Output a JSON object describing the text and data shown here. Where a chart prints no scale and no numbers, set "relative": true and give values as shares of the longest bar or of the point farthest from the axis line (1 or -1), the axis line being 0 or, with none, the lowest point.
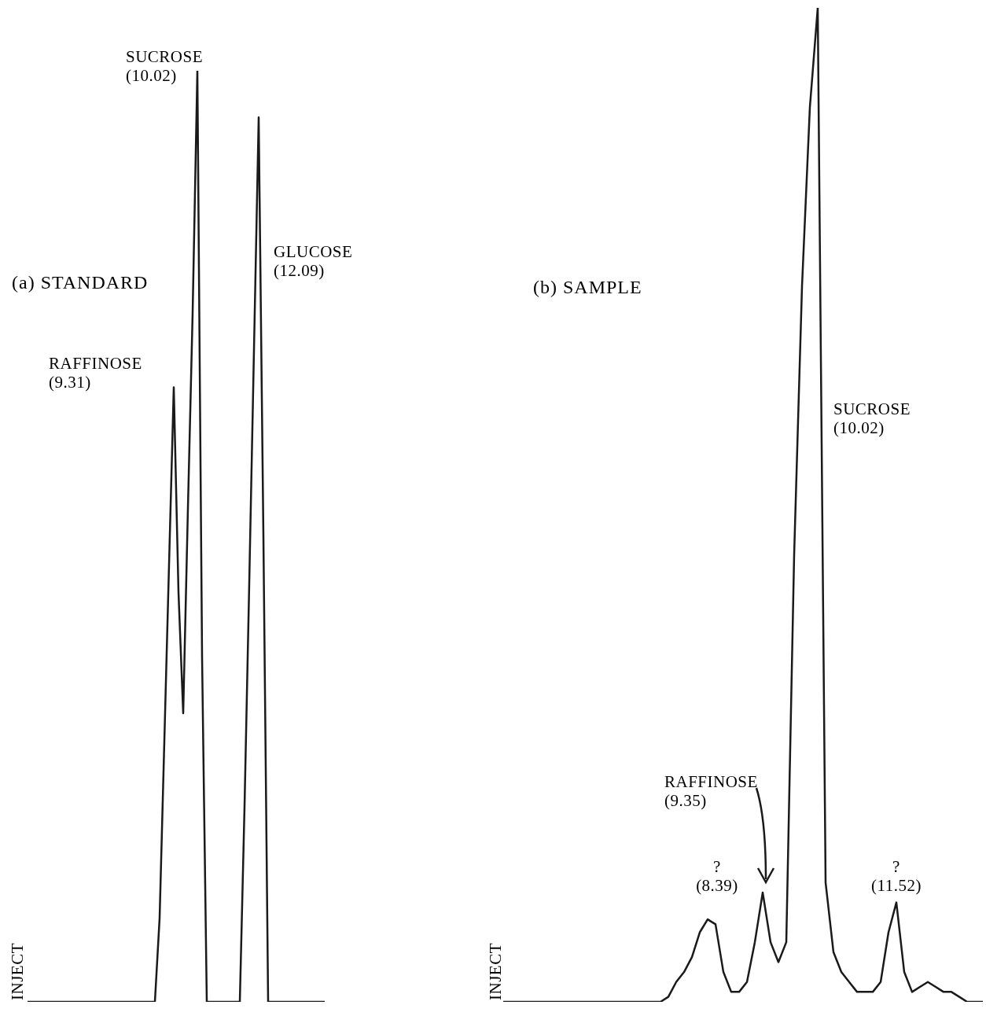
{
  "chart_data": [
    {
      "type": "line",
      "title": "(a) STANDARD",
      "relative": true,
      "color": "#1a1a1a",
      "categories": [
        null,
        null,
        null,
        null,
        null,
        null,
        null,
        null,
        null,
        null,
        null,
        null,
        null,
        null,
        null,
        null,
        null,
        null,
        null,
        null,
        null,
        null,
        null,
        null,
        null,
        null,
        null,
        null,
        null,
        null,
        null,
        null,
        null,
        null,
        null,
        null,
        null,
        null,
        null,
        null,
        null,
        null,
        null,
        null,
        null,
        null,
        null,
        null,
        null,
        null,
        null,
        null,
        null,
        null,
        null,
        null,
        null,
        null,
        null,
        null,
        null,
        null,
        null,
        null
      ],
      "values": [
        0,
        0,
        0,
        0,
        0,
        0,
        0,
        0,
        0,
        0,
        0,
        0,
        0,
        0,
        0,
        0,
        0,
        0,
        0,
        0,
        0,
        0,
        0,
        0,
        0,
        0,
        0,
        0,
        0.09,
        0.28,
        0.47,
        0.66,
        0.44,
        0.31,
        0.53,
        0.74,
        1,
        0.37,
        0,
        0,
        0,
        0,
        0,
        0,
        0,
        0,
        0.21,
        0.45,
        0.7,
        0.95,
        0.5,
        0,
        0,
        0,
        0,
        0,
        0,
        0,
        0,
        0,
        0,
        0,
        0,
        0
      ],
      "annotations": [
        "SUCROSE\n(10.02)",
        "GLUCOSE\n(12.09)",
        "RAFFINOSE\n(9.31)",
        "INJECT"
      ]
    },
    {
      "type": "line",
      "title": "(b) SAMPLE",
      "relative": true,
      "color": "#1a1a1a",
      "categories": [
        null,
        null,
        null,
        null,
        null,
        null,
        null,
        null,
        null,
        null,
        null,
        null,
        null,
        null,
        null,
        null,
        null,
        null,
        null,
        null,
        null,
        null,
        null,
        null,
        null,
        null,
        null,
        null,
        null,
        null,
        null,
        null,
        null,
        null,
        null,
        null,
        null,
        null,
        null,
        null,
        null,
        null,
        null,
        null,
        null,
        null,
        null,
        null,
        null,
        null,
        null,
        null,
        null,
        null,
        null,
        null,
        null,
        null,
        null,
        null,
        null,
        null
      ],
      "values": [
        0,
        0,
        0,
        0,
        0,
        0,
        0,
        0,
        0,
        0,
        0,
        0,
        0,
        0,
        0,
        0,
        0,
        0,
        0,
        0,
        0,
        0.005,
        0.02,
        0.03,
        0.045,
        0.07,
        0.083,
        0.078,
        0.03,
        0.01,
        0.01,
        0.02,
        0.06,
        0.11,
        0.06,
        0.04,
        0.06,
        0.45,
        0.72,
        0.9,
        1,
        0.12,
        0.05,
        0.03,
        0.02,
        0.01,
        0.01,
        0.01,
        0.02,
        0.07,
        0.1,
        0.03,
        0.01,
        0.015,
        0.02,
        0.015,
        0.01,
        0.01,
        0.005,
        0,
        0,
        0
      ],
      "annotations": [
        "SUCROSE\n(10.02)",
        "RAFFINOSE\n(9.35)",
        "?\n(8.39)",
        "?\n(11.52)",
        "INJECT"
      ]
    }
  ]
}
